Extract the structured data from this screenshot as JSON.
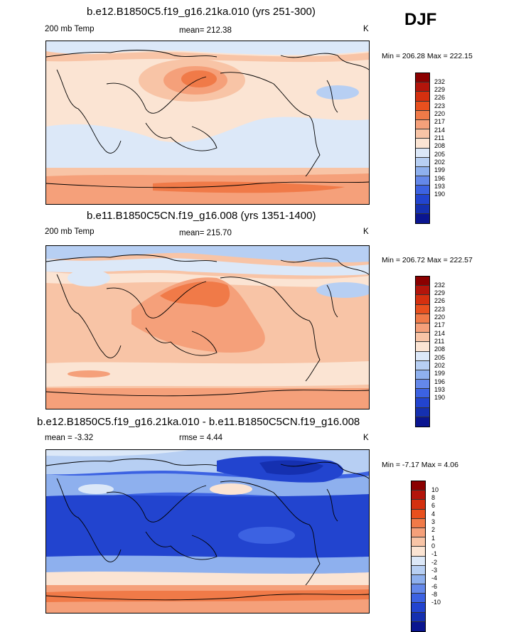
{
  "season": "DJF",
  "panels": [
    {
      "title": "b.e12.B1850C5.f19_g16.21ka.010 (yrs 251-300)",
      "left_label": "200 mb Temp",
      "center_label": "mean= 212.38",
      "units": "K",
      "minmax": "Min = 206.28 Max = 222.15",
      "colorbar_labels": [
        "232",
        "229",
        "226",
        "223",
        "220",
        "217",
        "214",
        "211",
        "208",
        "205",
        "202",
        "199",
        "196",
        "193",
        "190"
      ]
    },
    {
      "title": "b.e11.B1850C5CN.f19_g16.008 (yrs 1351-1400)",
      "left_label": "200 mb Temp",
      "center_label": "mean= 215.70",
      "units": "K",
      "minmax": "Min = 206.72 Max = 222.57",
      "colorbar_labels": [
        "232",
        "229",
        "226",
        "223",
        "220",
        "217",
        "214",
        "211",
        "208",
        "205",
        "202",
        "199",
        "196",
        "193",
        "190"
      ]
    },
    {
      "title": "b.e12.B1850C5.f19_g16.21ka.010 - b.e11.B1850C5CN.f19_g16.008",
      "left_label": "mean =  -3.32",
      "center_label": "rmse =   4.44",
      "units": "K",
      "minmax": "Min =  -7.17 Max =   4.06",
      "colorbar_labels": [
        "10",
        "8",
        "6",
        "4",
        "3",
        "2",
        "1",
        "0",
        "-1",
        "-2",
        "-3",
        "-4",
        "-6",
        "-8",
        "-10"
      ]
    }
  ],
  "colors": {
    "palette": [
      "#8b0000",
      "#b3150b",
      "#d4300f",
      "#e8501e",
      "#f07a48",
      "#f5a07a",
      "#f8c4a6",
      "#fbe4d3",
      "#dce8f8",
      "#b7cff3",
      "#8eb0ee",
      "#6488ea",
      "#3c62e2",
      "#2244cf",
      "#1530b0",
      "#0a1590"
    ],
    "land_line": "#000000"
  }
}
